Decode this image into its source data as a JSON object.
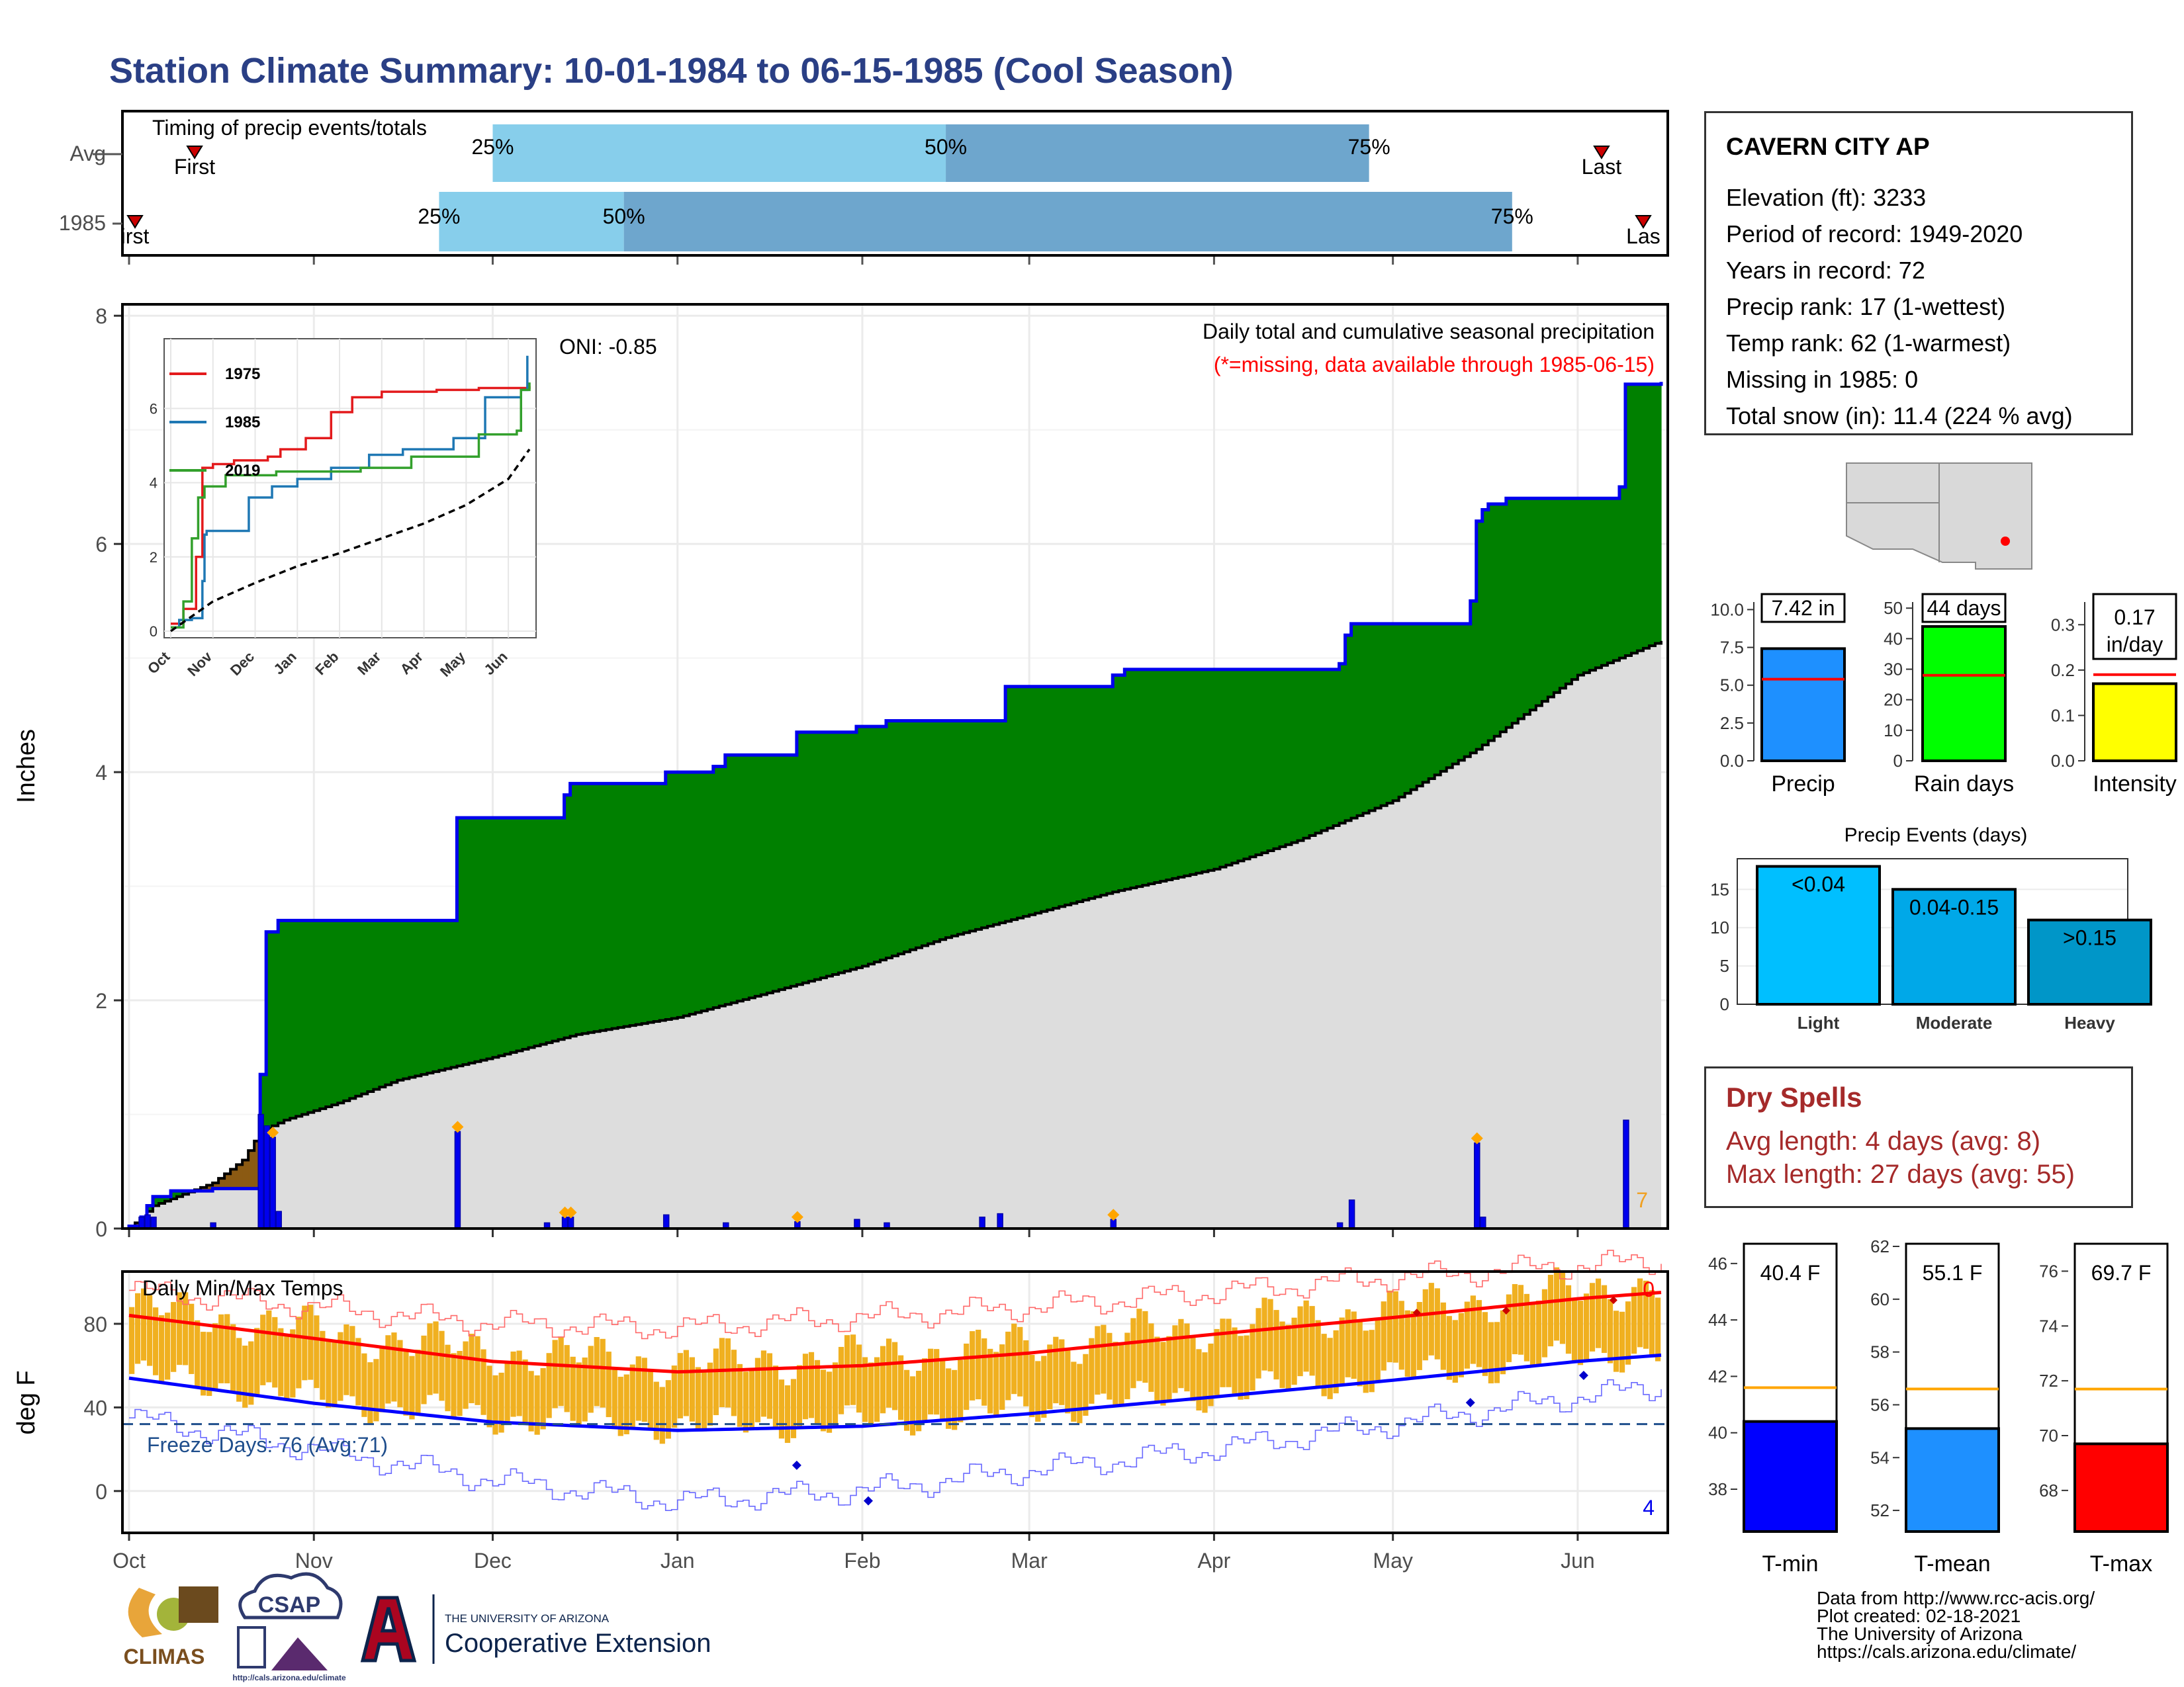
{
  "title": "Station Climate Summary: 10-01-1984 to 06-15-1985 (Cool Season)",
  "timing": {
    "label": "Timing of precip events/totals",
    "rows": [
      "Avg",
      "1985"
    ],
    "avg": {
      "first": "First",
      "last": "Last",
      "first_date": "1984-10-12",
      "last_date": "1985-06-05",
      "p25_date": "1984-12-01",
      "p50_date": "1985-02-15",
      "p75_date": "1985-04-27"
    },
    "y1985": {
      "first": "irst",
      "last": "Las",
      "first_date": "1984-10-02",
      "last_date": "1985-06-12",
      "p25_date": "1984-11-22",
      "p50_date": "1984-12-23",
      "p75_date": "1985-05-21"
    },
    "pct_labels": [
      "25%",
      "50%",
      "75%"
    ]
  },
  "precip_panel": {
    "ylabel": "Inches",
    "oni": "ONI: -0.85",
    "caption": "Daily total and cumulative seasonal precipitation",
    "missing_note": "(*=missing, data available through 1985-06-15)",
    "corner_count": "7",
    "colors": {
      "above": "#008000",
      "below": "#8B5A13",
      "line": "#0000EE",
      "avg_fill": "#DDDDDD"
    }
  },
  "inset": {
    "series": [
      {
        "name": "1975",
        "color": "#E31A1C"
      },
      {
        "name": "1985",
        "color": "#1F78B4"
      },
      {
        "name": "2019",
        "color": "#33A02C"
      }
    ],
    "xticks": [
      "Oct",
      "Nov",
      "Dec",
      "Jan",
      "Feb",
      "Mar",
      "Apr",
      "May",
      "Jun"
    ],
    "yticks": [
      "0",
      "2",
      "4",
      "6"
    ]
  },
  "temp_panel": {
    "ylabel": "deg F",
    "title": "Daily Min/Max Temps",
    "freeze": "Freeze Days: 76 (Avg:71)",
    "top_count": "0",
    "bottom_count": "4",
    "yticks": [
      "0",
      "40",
      "80"
    ]
  },
  "months": [
    "Oct",
    "Nov",
    "Dec",
    "Jan",
    "Feb",
    "Mar",
    "Apr",
    "May",
    "Jun"
  ],
  "station": {
    "name": "CAVERN CITY AP",
    "lines": [
      "Elevation (ft): 3233",
      "Period of record: 1949-2020",
      "Years in record: 72",
      "Precip rank: 17 (1-wettest)",
      "Temp rank: 62 (1-warmest)",
      "Missing in 1985: 0",
      "Total snow (in): 11.4 (224 % avg)"
    ]
  },
  "small_bars": [
    {
      "label": "Precip",
      "value_text": "7.42 in",
      "value": 7.42,
      "avg": 5.4,
      "ymax": 10.5,
      "ticks": [
        "0.0",
        "2.5",
        "5.0",
        "7.5",
        "10.0"
      ],
      "tickvals": [
        0,
        2.5,
        5,
        7.5,
        10
      ],
      "color": "#1E90FF"
    },
    {
      "label": "Rain days",
      "value_text": "44 days",
      "value": 44,
      "avg": 28,
      "ymax": 52,
      "ticks": [
        "0",
        "10",
        "20",
        "30",
        "40",
        "50"
      ],
      "tickvals": [
        0,
        10,
        20,
        30,
        40,
        50
      ],
      "color": "#00FF00"
    },
    {
      "label": "Intensity",
      "value_text": "0.17 in/day",
      "value_line1": "0.17",
      "value_line2": "in/day",
      "value": 0.17,
      "avg": 0.19,
      "ymax": 0.35,
      "ticks": [
        "0.0",
        "0.1",
        "0.2",
        "0.3"
      ],
      "tickvals": [
        0,
        0.1,
        0.2,
        0.3
      ],
      "color": "#FFFF00"
    }
  ],
  "precip_events": {
    "title": "Precip Events (days)",
    "categories": [
      "Light",
      "Moderate",
      "Heavy"
    ],
    "bar_labels": [
      "<0.04",
      "0.04-0.15",
      ">0.15"
    ],
    "values": [
      18,
      15,
      11
    ],
    "colors": [
      "#00BFFF",
      "#00A8E8",
      "#0096C8"
    ],
    "ticks": [
      "0",
      "5",
      "10",
      "15"
    ],
    "ymax": 19
  },
  "dry_spells": {
    "title": "Dry Spells",
    "avg_line": "Avg length: 4 days (avg: 8)",
    "max_line": "Max length: 27 days (avg: 55)"
  },
  "temp_bars": [
    {
      "label": "T-min",
      "value_text": "40.4 F",
      "value": 40.4,
      "avg": 41.6,
      "ylim": [
        36.5,
        46.7
      ],
      "ticks": [
        "38",
        "40",
        "42",
        "44",
        "46"
      ],
      "tickvals": [
        38,
        40,
        42,
        44,
        46
      ],
      "color": "#0000FF"
    },
    {
      "label": "T-mean",
      "value_text": "55.1 F",
      "value": 55.1,
      "avg": 56.6,
      "ylim": [
        51.2,
        62.1
      ],
      "ticks": [
        "52",
        "54",
        "56",
        "58",
        "60",
        "62"
      ],
      "tickvals": [
        52,
        54,
        56,
        58,
        60,
        62
      ],
      "color": "#1E90FF"
    },
    {
      "label": "T-max",
      "value_text": "69.7 F",
      "value": 69.7,
      "avg": 71.7,
      "ylim": [
        66.5,
        77.0
      ],
      "ticks": [
        "68",
        "70",
        "72",
        "74",
        "76"
      ],
      "tickvals": [
        68,
        70,
        72,
        74,
        76
      ],
      "color": "#FF0000"
    }
  ],
  "footer": {
    "lines": [
      "Data from http://www.rcc-acis.org/",
      "Plot created: 02-18-2021",
      "The University of Arizona",
      "https://cals.arizona.edu/climate/"
    ],
    "climas": "CLIMAS",
    "csap": "CSAP",
    "csap_url": "http://cals.arizona.edu/climate",
    "ua_small": "THE UNIVERSITY OF ARIZONA",
    "ua_big": "Cooperative Extension"
  },
  "chart_data": {
    "type": "area",
    "title": "Station Climate Summary: 10-01-1984 to 06-15-1985 (Cool Season)",
    "ylabel": "Inches",
    "ylim": [
      0,
      8.1
    ],
    "x_start": "1984-10-01",
    "x_end": "1985-06-15",
    "cumulative_1985": [
      [
        "1984-10-01",
        0.02
      ],
      [
        "1984-10-03",
        0.1
      ],
      [
        "1984-10-04",
        0.2
      ],
      [
        "1984-10-05",
        0.28
      ],
      [
        "1984-10-08",
        0.33
      ],
      [
        "1984-10-15",
        0.35
      ],
      [
        "1984-10-23",
        1.35
      ],
      [
        "1984-10-24",
        2.6
      ],
      [
        "1984-10-26",
        2.7
      ],
      [
        "1984-11-25",
        3.6
      ],
      [
        "1984-12-13",
        3.8
      ],
      [
        "1984-12-14",
        3.9
      ],
      [
        "1984-12-30",
        4.0
      ],
      [
        "1985-01-07",
        4.05
      ],
      [
        "1985-01-09",
        4.15
      ],
      [
        "1985-01-21",
        4.35
      ],
      [
        "1985-01-31",
        4.4
      ],
      [
        "1985-02-05",
        4.45
      ],
      [
        "1985-02-21",
        4.45
      ],
      [
        "1985-02-25",
        4.75
      ],
      [
        "1985-03-15",
        4.85
      ],
      [
        "1985-03-17",
        4.9
      ],
      [
        "1985-04-22",
        4.95
      ],
      [
        "1985-04-23",
        5.2
      ],
      [
        "1985-04-24",
        5.3
      ],
      [
        "1985-05-14",
        5.5
      ],
      [
        "1985-05-15",
        6.2
      ],
      [
        "1985-05-16",
        6.3
      ],
      [
        "1985-05-17",
        6.35
      ],
      [
        "1985-05-20",
        6.4
      ],
      [
        "1985-06-08",
        6.5
      ],
      [
        "1985-06-09",
        7.4
      ],
      [
        "1985-06-15",
        7.42
      ]
    ],
    "cumulative_avg": [
      [
        "1984-10-01",
        0.0
      ],
      [
        "1984-10-05",
        0.2
      ],
      [
        "1984-10-10",
        0.3
      ],
      [
        "1984-10-15",
        0.4
      ],
      [
        "1984-10-20",
        0.6
      ],
      [
        "1984-10-23",
        0.85
      ],
      [
        "1984-10-27",
        0.95
      ],
      [
        "1984-11-05",
        1.1
      ],
      [
        "1984-11-15",
        1.3
      ],
      [
        "1984-12-01",
        1.5
      ],
      [
        "1984-12-15",
        1.7
      ],
      [
        "1985-01-01",
        1.85
      ],
      [
        "1985-01-15",
        2.05
      ],
      [
        "1985-02-01",
        2.3
      ],
      [
        "1985-02-15",
        2.55
      ],
      [
        "1985-03-01",
        2.75
      ],
      [
        "1985-03-15",
        2.95
      ],
      [
        "1985-04-01",
        3.15
      ],
      [
        "1985-04-15",
        3.4
      ],
      [
        "1985-05-01",
        3.75
      ],
      [
        "1985-05-15",
        4.2
      ],
      [
        "1985-06-01",
        4.85
      ],
      [
        "1985-06-15",
        5.15
      ]
    ],
    "daily_precip_bars": [
      [
        "1984-10-03",
        0.1
      ],
      [
        "1984-10-04",
        0.12
      ],
      [
        "1984-10-05",
        0.1
      ],
      [
        "1984-10-15",
        0.05
      ],
      [
        "1984-10-23",
        1.0
      ],
      [
        "1984-10-24",
        0.9
      ],
      [
        "1984-10-25",
        0.8
      ],
      [
        "1984-10-26",
        0.15
      ],
      [
        "1984-11-25",
        0.85
      ],
      [
        "1984-12-10",
        0.05
      ],
      [
        "1984-12-13",
        0.1
      ],
      [
        "1984-12-14",
        0.1
      ],
      [
        "1984-12-30",
        0.12
      ],
      [
        "1985-01-09",
        0.05
      ],
      [
        "1985-01-21",
        0.06
      ],
      [
        "1985-01-31",
        0.08
      ],
      [
        "1985-02-05",
        0.05
      ],
      [
        "1985-02-21",
        0.1
      ],
      [
        "1985-02-24",
        0.13
      ],
      [
        "1985-03-15",
        0.08
      ],
      [
        "1985-04-22",
        0.05
      ],
      [
        "1985-04-24",
        0.25
      ],
      [
        "1985-05-15",
        0.75
      ],
      [
        "1985-05-16",
        0.1
      ],
      [
        "1985-06-09",
        0.95
      ]
    ],
    "snow_days": [
      "1984-10-25",
      "1984-11-25",
      "1984-12-13",
      "1984-12-14",
      "1985-01-21",
      "1985-03-15",
      "1985-05-15"
    ],
    "inset": {
      "type": "line",
      "xticks": [
        "Oct",
        "Nov",
        "Dec",
        "Jan",
        "Feb",
        "Mar",
        "Apr",
        "May",
        "Jun"
      ],
      "ylim": [
        0,
        8
      ],
      "series": [
        {
          "name": "1975",
          "values": [
            [
              0,
              0.2
            ],
            [
              0.3,
              0.6
            ],
            [
              0.6,
              2.0
            ],
            [
              0.75,
              4.4
            ],
            [
              1.0,
              4.5
            ],
            [
              1.5,
              4.6
            ],
            [
              2.3,
              4.7
            ],
            [
              2.6,
              4.9
            ],
            [
              3.2,
              5.2
            ],
            [
              3.8,
              5.9
            ],
            [
              4.3,
              6.3
            ],
            [
              5.0,
              6.45
            ],
            [
              6.3,
              6.5
            ],
            [
              7.3,
              6.55
            ],
            [
              8.5,
              6.6
            ]
          ]
        },
        {
          "name": "1985",
          "values": [
            [
              0,
              0.1
            ],
            [
              0.2,
              0.3
            ],
            [
              0.5,
              0.35
            ],
            [
              0.75,
              1.35
            ],
            [
              0.8,
              2.6
            ],
            [
              0.85,
              2.7
            ],
            [
              1.85,
              3.6
            ],
            [
              2.4,
              3.9
            ],
            [
              3.0,
              4.1
            ],
            [
              3.8,
              4.4
            ],
            [
              4.7,
              4.75
            ],
            [
              5.5,
              4.9
            ],
            [
              6.7,
              5.2
            ],
            [
              7.45,
              6.3
            ],
            [
              8.3,
              6.5
            ],
            [
              8.45,
              7.42
            ]
          ]
        },
        {
          "name": "2019",
          "values": [
            [
              0,
              0.1
            ],
            [
              0.3,
              0.8
            ],
            [
              0.5,
              2.5
            ],
            [
              0.65,
              3.6
            ],
            [
              0.8,
              3.9
            ],
            [
              1.3,
              4.2
            ],
            [
              2.5,
              4.3
            ],
            [
              4.5,
              4.4
            ],
            [
              5.7,
              4.7
            ],
            [
              7.3,
              5.3
            ],
            [
              8.2,
              5.4
            ],
            [
              8.3,
              6.5
            ],
            [
              8.5,
              6.7
            ]
          ]
        },
        {
          "name": "",
          "values": [
            [
              0,
              0.0
            ],
            [
              1,
              0.8
            ],
            [
              2,
              1.3
            ],
            [
              3,
              1.75
            ],
            [
              4,
              2.1
            ],
            [
              5,
              2.5
            ],
            [
              6,
              2.9
            ],
            [
              7,
              3.4
            ],
            [
              8,
              4.1
            ],
            [
              8.5,
              4.9
            ]
          ]
        }
      ]
    },
    "temps": {
      "ylim": [
        -20,
        105
      ],
      "freeze_line": 32,
      "avg_max": [
        [
          "1984-10-01",
          84
        ],
        [
          "1984-11-01",
          73
        ],
        [
          "1984-12-01",
          62
        ],
        [
          "1985-01-01",
          57
        ],
        [
          "1985-02-01",
          60
        ],
        [
          "1985-03-01",
          66
        ],
        [
          "1985-04-01",
          75
        ],
        [
          "1985-05-01",
          83
        ],
        [
          "1985-06-01",
          92
        ],
        [
          "1985-06-15",
          95
        ]
      ],
      "avg_min": [
        [
          "1984-10-01",
          54
        ],
        [
          "1984-11-01",
          42
        ],
        [
          "1984-12-01",
          33
        ],
        [
          "1985-01-01",
          29
        ],
        [
          "1985-02-01",
          31
        ],
        [
          "1985-03-01",
          37
        ],
        [
          "1985-04-01",
          45
        ],
        [
          "1985-05-01",
          53
        ],
        [
          "1985-06-01",
          62
        ],
        [
          "1985-06-15",
          65
        ]
      ],
      "record_max": [
        [
          "1984-10-01",
          96
        ],
        [
          "1984-11-01",
          88
        ],
        [
          "1984-12-01",
          80
        ],
        [
          "1985-01-01",
          78
        ],
        [
          "1985-02-01",
          83
        ],
        [
          "1985-03-01",
          88
        ],
        [
          "1985-04-01",
          95
        ],
        [
          "1985-05-01",
          102
        ],
        [
          "1985-06-01",
          108
        ],
        [
          "1985-06-15",
          110
        ]
      ],
      "record_min": [
        [
          "1984-10-01",
          35
        ],
        [
          "1984-11-01",
          20
        ],
        [
          "1984-12-01",
          5
        ],
        [
          "1985-01-01",
          -5
        ],
        [
          "1985-02-01",
          0
        ],
        [
          "1985-03-01",
          10
        ],
        [
          "1985-04-01",
          20
        ],
        [
          "1985-05-01",
          32
        ],
        [
          "1985-06-01",
          45
        ],
        [
          "1985-06-15",
          50
        ]
      ],
      "daily_range_pattern": {
        "max_offset": 4,
        "min_offset": 2,
        "amplitude": 9
      }
    }
  }
}
